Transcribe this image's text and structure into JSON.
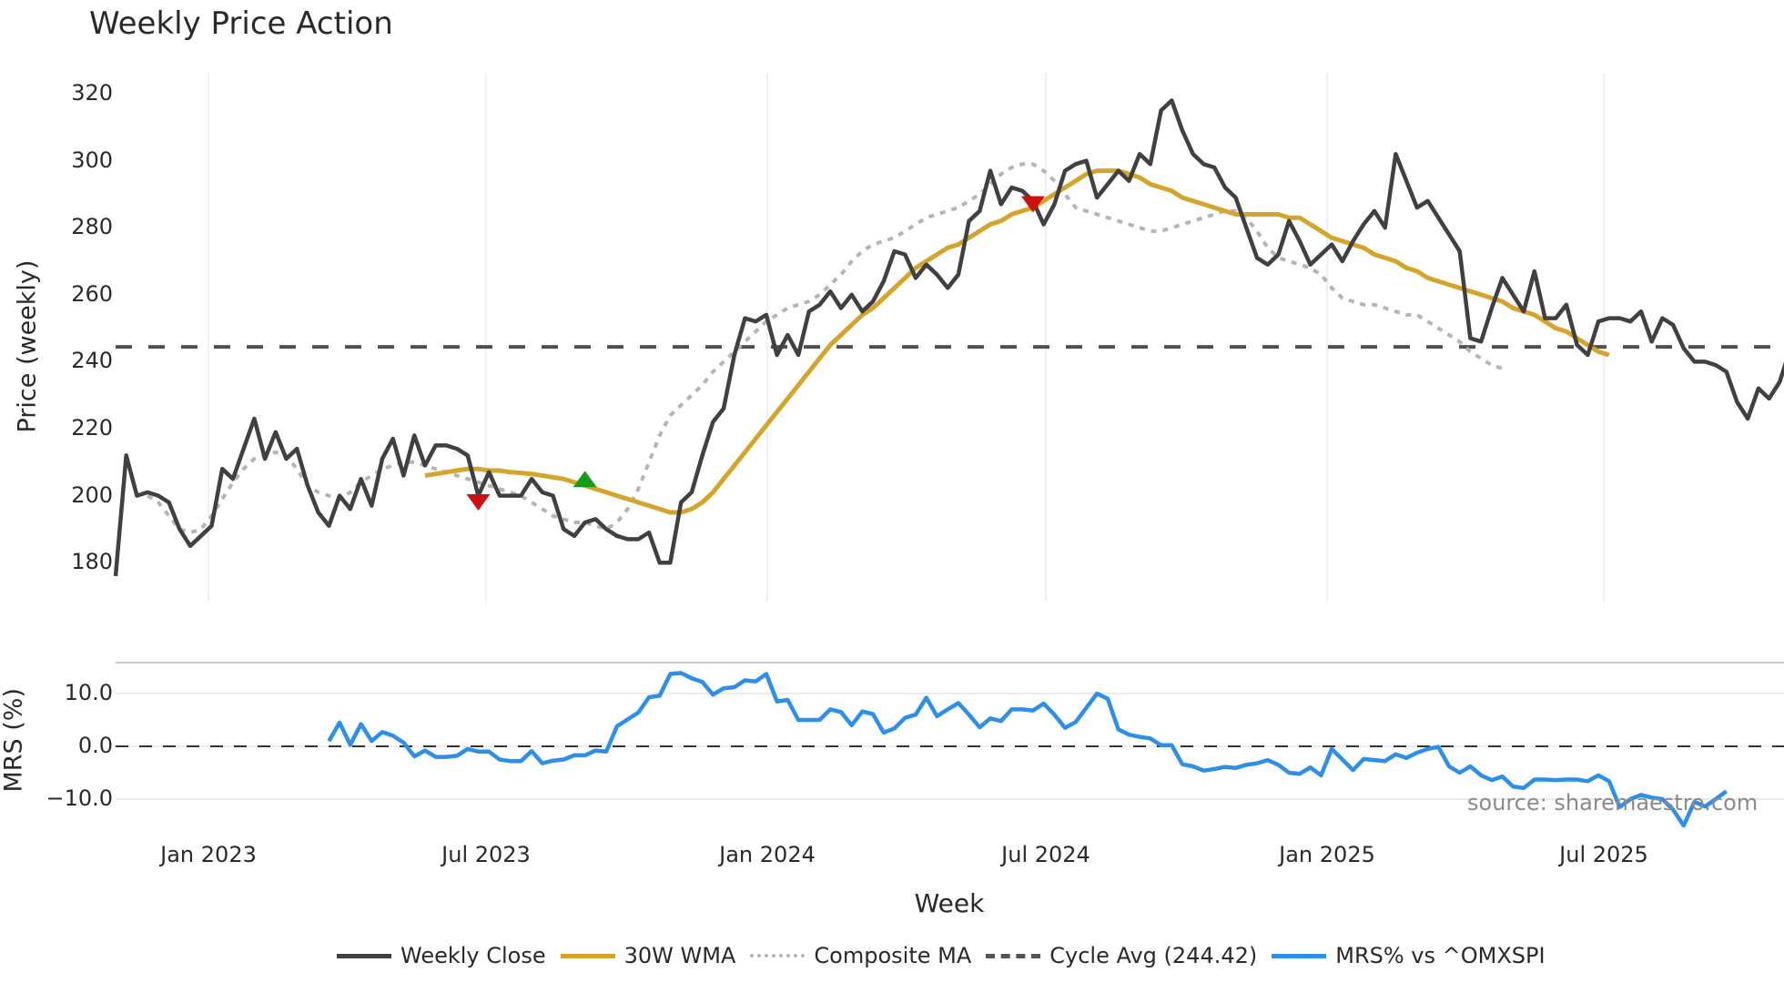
{
  "title": "Weekly Price Action",
  "price_axis": {
    "label": "Price (weekly)",
    "ticks": [
      "320",
      "300",
      "280",
      "260",
      "240",
      "220",
      "200",
      "180"
    ]
  },
  "mrs_axis": {
    "label": "MRS (%)",
    "ticks": [
      "10.0",
      "0.0",
      "−10.0"
    ]
  },
  "x_axis": {
    "label": "Week",
    "ticks": [
      "Jan 2023",
      "Jul 2023",
      "Jan 2024",
      "Jul 2024",
      "Jan 2025",
      "Jul 2025"
    ]
  },
  "source": "source: sharemaestro.com",
  "legend": [
    {
      "label": "Weekly Close",
      "color": "#404040",
      "style": "solid"
    },
    {
      "label": "30W WMA",
      "color": "#d4a52a",
      "style": "solid"
    },
    {
      "label": "Composite MA",
      "color": "#b5b5b5",
      "style": "dotted"
    },
    {
      "label": "Cycle Avg (244.42)",
      "color": "#555555",
      "style": "dashed"
    },
    {
      "label": "MRS% vs ^OMXSPI",
      "color": "#2e8fe8",
      "style": "solid"
    }
  ],
  "chart_data": [
    {
      "type": "line",
      "title": "Weekly Price Action",
      "xlabel": "Week",
      "ylabel": "Price (weekly)",
      "ylim": [
        168,
        325
      ],
      "x_ticks": [
        "Jan 2023",
        "Jul 2023",
        "Jan 2024",
        "Jul 2024",
        "Jan 2025",
        "Jul 2025"
      ],
      "x_start": "2022-11 (approx)",
      "grid": "vertical lines at x ticks",
      "cycle_avg": 244.42,
      "series": [
        {
          "name": "Weekly Close",
          "color": "#404040",
          "values": [
            176,
            212,
            200,
            201,
            200,
            198,
            190,
            185,
            188,
            191,
            208,
            205,
            214,
            223,
            211,
            219,
            211,
            214,
            203,
            195,
            191,
            200,
            196,
            205,
            197,
            211,
            217,
            206,
            218,
            209,
            215,
            215,
            214,
            212,
            200,
            207,
            200,
            200,
            200,
            205,
            201,
            200,
            190,
            188,
            192,
            193,
            190,
            188,
            187,
            187,
            189,
            180,
            180,
            198,
            201,
            212,
            222,
            226,
            242,
            253,
            252,
            254,
            242,
            248,
            242,
            255,
            257,
            261,
            256,
            260,
            255,
            258,
            264,
            273,
            272,
            265,
            269,
            266,
            262,
            266,
            282,
            285,
            297,
            287,
            292,
            291,
            288,
            281,
            287,
            297,
            299,
            300,
            289,
            293,
            297,
            294,
            302,
            299,
            315,
            318,
            309,
            302,
            299,
            298,
            292,
            289,
            280,
            271,
            269,
            272,
            282,
            276,
            269,
            272,
            275,
            270,
            276,
            281,
            285,
            280,
            302,
            294,
            286,
            288,
            283,
            278,
            273,
            247,
            246,
            256,
            265,
            260,
            255,
            267,
            253,
            253,
            257,
            245,
            242,
            252,
            253,
            253,
            252,
            255,
            246,
            253,
            251,
            244,
            240,
            240,
            239,
            237,
            228,
            223,
            232,
            229,
            234,
            244
          ]
        },
        {
          "name": "30W WMA",
          "color": "#d4a52a",
          "start_index": 29,
          "values": [
            206,
            206.5,
            207,
            207.5,
            208,
            208,
            207.5,
            207.5,
            207,
            206.8,
            206.5,
            206,
            205.5,
            205,
            204,
            203,
            202,
            201,
            200,
            199,
            198,
            197,
            196,
            195,
            195,
            196,
            198,
            201,
            205,
            209,
            213,
            217,
            221,
            225,
            229,
            233,
            237,
            241,
            245,
            248,
            251,
            254,
            256,
            259,
            262,
            265,
            268,
            270,
            272,
            274,
            275,
            277,
            279,
            281,
            282,
            284,
            285,
            286,
            288,
            290,
            292,
            294,
            296,
            297,
            297,
            297,
            296,
            295,
            293,
            292,
            291,
            289,
            288,
            287,
            286,
            285,
            284,
            284,
            284,
            284,
            284,
            283,
            283,
            281,
            279,
            277,
            276,
            275,
            274,
            272,
            271,
            270,
            268,
            267,
            265,
            264,
            263,
            262,
            261,
            260,
            259,
            258,
            256,
            255,
            254,
            252,
            250,
            249,
            247,
            245,
            243,
            242
          ]
        },
        {
          "name": "Composite MA",
          "color": "#b5b5b5",
          "style": "dotted",
          "start_index": 3,
          "values": [
            200,
            198,
            194,
            190,
            189,
            190,
            194,
            199,
            204,
            208,
            211,
            212,
            213,
            212,
            208,
            203,
            201,
            200,
            199,
            201,
            204,
            206,
            208,
            209,
            210,
            210,
            209,
            208,
            207,
            206,
            205,
            204,
            203,
            202,
            201,
            200,
            198,
            196,
            194,
            193,
            192,
            192,
            191,
            190,
            192,
            196,
            202,
            210,
            218,
            224,
            227,
            230,
            233,
            237,
            240,
            243,
            246,
            249,
            252,
            254,
            256,
            257,
            258,
            260,
            263,
            266,
            270,
            273,
            275,
            276,
            277,
            279,
            281,
            283,
            284,
            285,
            286,
            288,
            290,
            293,
            296,
            298,
            299,
            299,
            297,
            294,
            290,
            286,
            285,
            284,
            283,
            282,
            281,
            280,
            279,
            279,
            280,
            281,
            282,
            283,
            284,
            285,
            285,
            283,
            279,
            274,
            271,
            270,
            269,
            268,
            266,
            262,
            259,
            258,
            257,
            257,
            256,
            255,
            254,
            254,
            252,
            250,
            248,
            246,
            243,
            241,
            239,
            238
          ]
        }
      ],
      "markers": [
        {
          "type": "sell",
          "shape": "triangle-down",
          "color": "#cc1111",
          "x_index": 34,
          "value": 198
        },
        {
          "type": "buy",
          "shape": "triangle-up",
          "color": "#1a9a1a",
          "x_index": 44,
          "value": 205
        },
        {
          "type": "sell",
          "shape": "triangle-down",
          "color": "#cc1111",
          "x_index": 86,
          "value": 287
        }
      ]
    },
    {
      "type": "line",
      "title": "",
      "ylabel": "MRS (%)",
      "ylim": [
        -16,
        16
      ],
      "zero_line": 0,
      "series": [
        {
          "name": "MRS% vs ^OMXSPI",
          "color": "#2e8fe8",
          "start_index": 20,
          "values": [
            1,
            4.5,
            0.3,
            4.2,
            1,
            2.7,
            2,
            0.7,
            -1.9,
            -0.8,
            -2,
            -2,
            -1.8,
            -0.5,
            -1,
            -1,
            -2.5,
            -2.8,
            -2.8,
            -0.9,
            -3.2,
            -2.7,
            -2.5,
            -1.7,
            -1.7,
            -0.8,
            -1,
            3.8,
            5.1,
            6.4,
            9.3,
            9.6,
            13.7,
            13.9,
            12.9,
            12.2,
            9.8,
            11,
            11.2,
            12.5,
            12.3,
            13.7,
            8.5,
            8.8,
            5,
            5,
            5,
            7,
            6.5,
            4,
            6.6,
            6.1,
            2.6,
            3.4,
            5.4,
            6,
            9.2,
            5.7,
            7,
            8.2,
            6,
            3.6,
            5.3,
            4.8,
            7,
            7,
            6.8,
            8.1,
            6,
            3.5,
            4.6,
            7.3,
            10,
            9,
            3.2,
            2.2,
            1.8,
            1.5,
            0.2,
            0.2,
            -3.4,
            -3.8,
            -4.6,
            -4.3,
            -3.9,
            -4.1,
            -3.5,
            -3.2,
            -2.6,
            -3.5,
            -5,
            -5.2,
            -4,
            -5.5,
            -0.5,
            -2.5,
            -4.5,
            -2.4,
            -2.6,
            -2.8,
            -1.5,
            -2.2,
            -1.2,
            -0.5,
            -0.1,
            -3.8,
            -5,
            -3.8,
            -5.5,
            -6.4,
            -5.7,
            -7.6,
            -7.9,
            -6.3,
            -6.3,
            -6.4,
            -6.3,
            -6.3,
            -6.6,
            -5.5,
            -6.6,
            -11.5,
            -10,
            -9.2,
            -9.7,
            -10,
            -12,
            -15,
            -10.5,
            -11.4,
            -10,
            -8.5
          ]
        }
      ]
    }
  ]
}
